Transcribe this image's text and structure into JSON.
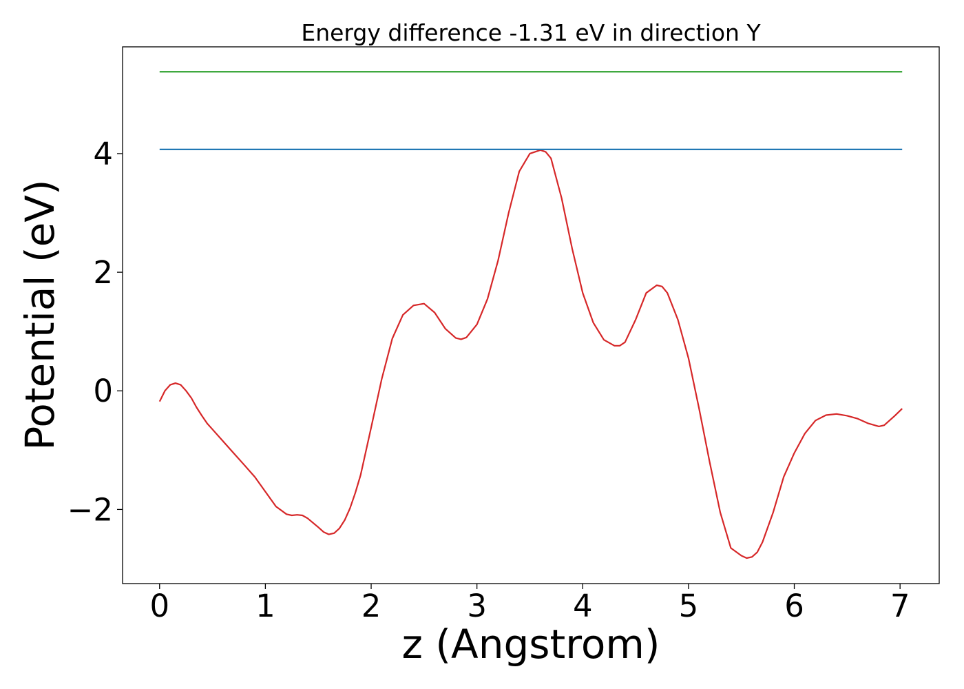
{
  "chart_data": {
    "type": "line",
    "title": "Energy difference -1.31 eV in direction Y",
    "xlabel": "z (Angstrom)",
    "ylabel": "Potential (eV)",
    "xlim": [
      -0.35,
      7.37
    ],
    "ylim": [
      -3.25,
      5.8
    ],
    "xticks": [
      0,
      1,
      2,
      3,
      4,
      5,
      6,
      7
    ],
    "xtick_labels": [
      "0",
      "1",
      "2",
      "3",
      "4",
      "5",
      "6",
      "7"
    ],
    "yticks": [
      -2,
      0,
      2,
      4
    ],
    "ytick_labels": [
      "−2",
      "0",
      "2",
      "4"
    ],
    "grid": false,
    "legend": "none",
    "series": [
      {
        "color": "#d62728",
        "x": [
          0.0,
          0.05,
          0.1,
          0.15,
          0.2,
          0.25,
          0.3,
          0.35,
          0.4,
          0.45,
          0.5,
          0.6,
          0.7,
          0.8,
          0.9,
          1.0,
          1.1,
          1.2,
          1.25,
          1.3,
          1.35,
          1.4,
          1.5,
          1.55,
          1.6,
          1.65,
          1.7,
          1.75,
          1.8,
          1.85,
          1.9,
          2.0,
          2.1,
          2.2,
          2.3,
          2.4,
          2.5,
          2.6,
          2.7,
          2.8,
          2.85,
          2.9,
          3.0,
          3.1,
          3.2,
          3.3,
          3.4,
          3.5,
          3.6,
          3.65,
          3.7,
          3.8,
          3.9,
          4.0,
          4.1,
          4.2,
          4.3,
          4.35,
          4.4,
          4.5,
          4.6,
          4.7,
          4.75,
          4.8,
          4.9,
          5.0,
          5.1,
          5.2,
          5.3,
          5.4,
          5.5,
          5.55,
          5.6,
          5.65,
          5.7,
          5.8,
          5.9,
          6.0,
          6.1,
          6.2,
          6.3,
          6.4,
          6.5,
          6.6,
          6.7,
          6.8,
          6.85,
          6.9,
          6.95,
          7.02
        ],
        "y": [
          -0.18,
          0.0,
          0.1,
          0.13,
          0.1,
          0.0,
          -0.12,
          -0.28,
          -0.42,
          -0.55,
          -0.65,
          -0.85,
          -1.05,
          -1.25,
          -1.45,
          -1.7,
          -1.95,
          -2.08,
          -2.1,
          -2.09,
          -2.1,
          -2.15,
          -2.3,
          -2.38,
          -2.42,
          -2.4,
          -2.32,
          -2.18,
          -1.98,
          -1.72,
          -1.42,
          -0.62,
          0.2,
          0.88,
          1.28,
          1.44,
          1.47,
          1.32,
          1.05,
          0.89,
          0.87,
          0.9,
          1.12,
          1.55,
          2.2,
          3.0,
          3.7,
          4.0,
          4.06,
          4.03,
          3.92,
          3.25,
          2.4,
          1.65,
          1.15,
          0.86,
          0.76,
          0.76,
          0.82,
          1.2,
          1.65,
          1.78,
          1.76,
          1.65,
          1.2,
          0.55,
          -0.3,
          -1.2,
          -2.05,
          -2.65,
          -2.78,
          -2.82,
          -2.8,
          -2.72,
          -2.55,
          -2.05,
          -1.45,
          -1.05,
          -0.72,
          -0.5,
          -0.41,
          -0.39,
          -0.42,
          -0.47,
          -0.55,
          -0.6,
          -0.58,
          -0.5,
          -0.42,
          -0.3
        ]
      },
      {
        "color": "#1f77b4",
        "x": [
          0.0,
          7.02
        ],
        "y": [
          4.07,
          4.07
        ]
      },
      {
        "color": "#2ca02c",
        "x": [
          0.0,
          7.02
        ],
        "y": [
          5.38,
          5.38
        ]
      }
    ]
  }
}
